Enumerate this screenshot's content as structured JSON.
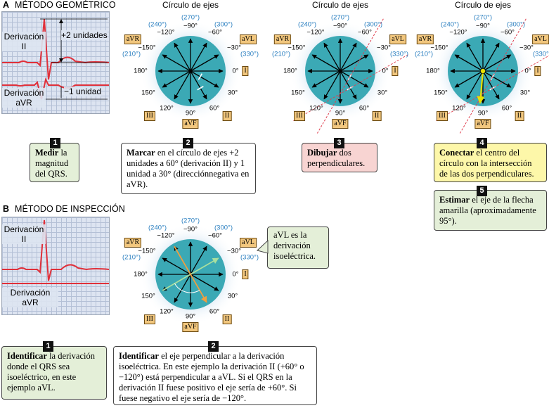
{
  "section_a": {
    "letter": "A",
    "title": "MÉTODO GEOMÉTRICO"
  },
  "section_b": {
    "letter": "B",
    "title": "MÉTODO DE INSPECCIÓN"
  },
  "circle_title": "Círculo de ejes",
  "ecg_a": {
    "lead1": "Derivación\nII",
    "lead2": "Derivación\naVR",
    "plus2": "+2 unidades",
    "minus1": "−1 unidad"
  },
  "ecg_b": {
    "lead1": "Derivación\nII",
    "lead2": "Derivación\naVR"
  },
  "degrees": {
    "d270": "(270°)",
    "m90": "−90°",
    "d240": "(240°)",
    "m120": "−120°",
    "d300": "(300°)",
    "m60": "−60°",
    "d210": "(210°)",
    "m150": "−150°",
    "d330": "(330°)",
    "m30": "−30°",
    "d180": "180°",
    "d0": "0°",
    "d150": "150°",
    "d30": "30°",
    "d120": "120°",
    "d60": "60°",
    "d90": "90°"
  },
  "leads": {
    "avr": "aVR",
    "avl": "aVL",
    "i": "I",
    "ii": "II",
    "iii": "III",
    "avf": "aVF"
  },
  "steps_a": [
    {
      "num": "1",
      "bold": "Medir",
      "text": " la magnitud del QRS."
    },
    {
      "num": "2",
      "bold": "Marcar",
      "text": " en el círculo de ejes +2 unidades a 60° (derivación II) y 1 unidad a 30° (direcciónnegativa en aVR)."
    },
    {
      "num": "3",
      "bold": "Dibujar",
      "text": " dos perpendiculares."
    },
    {
      "num": "4",
      "bold": "Conectar",
      "text": " el centro del círculo con la intersección de las dos perpendiculares."
    },
    {
      "num": "5",
      "bold": "Estimar",
      "text": " el eje de la flecha amarilla (aproximadamente 95°)."
    }
  ],
  "steps_b": [
    {
      "num": "1",
      "bold": "Identificar",
      "text": "  la derivación donde el QRS sea isoeléctrico, en este ejemplo aVL."
    },
    {
      "num": "2",
      "bold": "Identificar",
      "text": " el eje perpendicular a la derivación isoeléctrica. En este ejemplo la derivación II (+60° o −120°) está perpendicular a aVL. Si el QRS en la derivación II fuese positivo el eje sería de +60°. Si fuese negativo el eje sería de −120°."
    }
  ],
  "callout_b": "aVL es la derivación isoeléctrica.",
  "colors": {
    "circle": "#3ba9b5",
    "halo": "#cfe3f2",
    "ecg_line": "#e0303a",
    "axis_yellow": "#e8e000",
    "perp": "#e04050",
    "avl_green": "#a8e0a0",
    "ii_orange": "#f0a040"
  },
  "axis_estimate": 95
}
